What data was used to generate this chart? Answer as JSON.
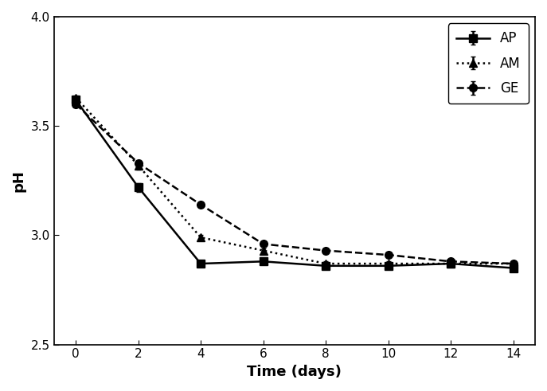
{
  "x": [
    0,
    2,
    4,
    6,
    8,
    10,
    12,
    14
  ],
  "AP": [
    3.62,
    3.22,
    2.87,
    2.88,
    2.86,
    2.86,
    2.87,
    2.85
  ],
  "AM": [
    3.63,
    3.32,
    2.99,
    2.93,
    2.87,
    2.87,
    2.87,
    2.87
  ],
  "GE": [
    3.6,
    3.33,
    3.14,
    2.96,
    2.93,
    2.91,
    2.88,
    2.87
  ],
  "AP_err": [
    0.01,
    0.02,
    0.01,
    0.01,
    0.01,
    0.01,
    0.01,
    0.01
  ],
  "AM_err": [
    0.01,
    0.02,
    0.01,
    0.01,
    0.01,
    0.01,
    0.01,
    0.01
  ],
  "GE_err": [
    0.01,
    0.01,
    0.01,
    0.01,
    0.01,
    0.01,
    0.01,
    0.01
  ],
  "xlabel": "Time (days)",
  "ylabel": "pH",
  "ylim": [
    2.5,
    4.0
  ],
  "yticks": [
    2.5,
    3.0,
    3.5,
    4.0
  ],
  "xticks": [
    0,
    2,
    4,
    6,
    8,
    10,
    12,
    14
  ],
  "color": "#000000",
  "legend_labels": [
    "AP",
    "AM",
    "GE"
  ],
  "title": ""
}
